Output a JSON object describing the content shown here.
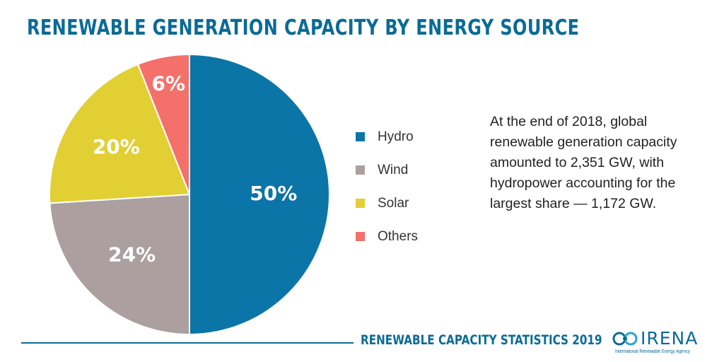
{
  "header": {
    "title": "RENEWABLE GENERATION CAPACITY BY ENERGY SOURCE"
  },
  "description": "At the end of 2018, global renewable generation capacity amounted to 2,351 GW, with hydropower accounting for the largest share — 1,172 GW.",
  "footer": {
    "label": "RENEWABLE CAPACITY STATISTICS 2019",
    "logo_text": "IRENA",
    "logo_subtext": "International Renewable Energy Agency"
  },
  "chart_data": {
    "type": "pie",
    "categories": [
      "Hydro",
      "Wind",
      "Solar",
      "Others"
    ],
    "values": [
      50,
      24,
      20,
      6
    ],
    "data_labels": [
      "50%",
      "24%",
      "20%",
      "6%"
    ],
    "colors": [
      "#0b75a8",
      "#ab9fa0",
      "#e2cf33",
      "#f4706b"
    ],
    "legend_position": "right"
  }
}
